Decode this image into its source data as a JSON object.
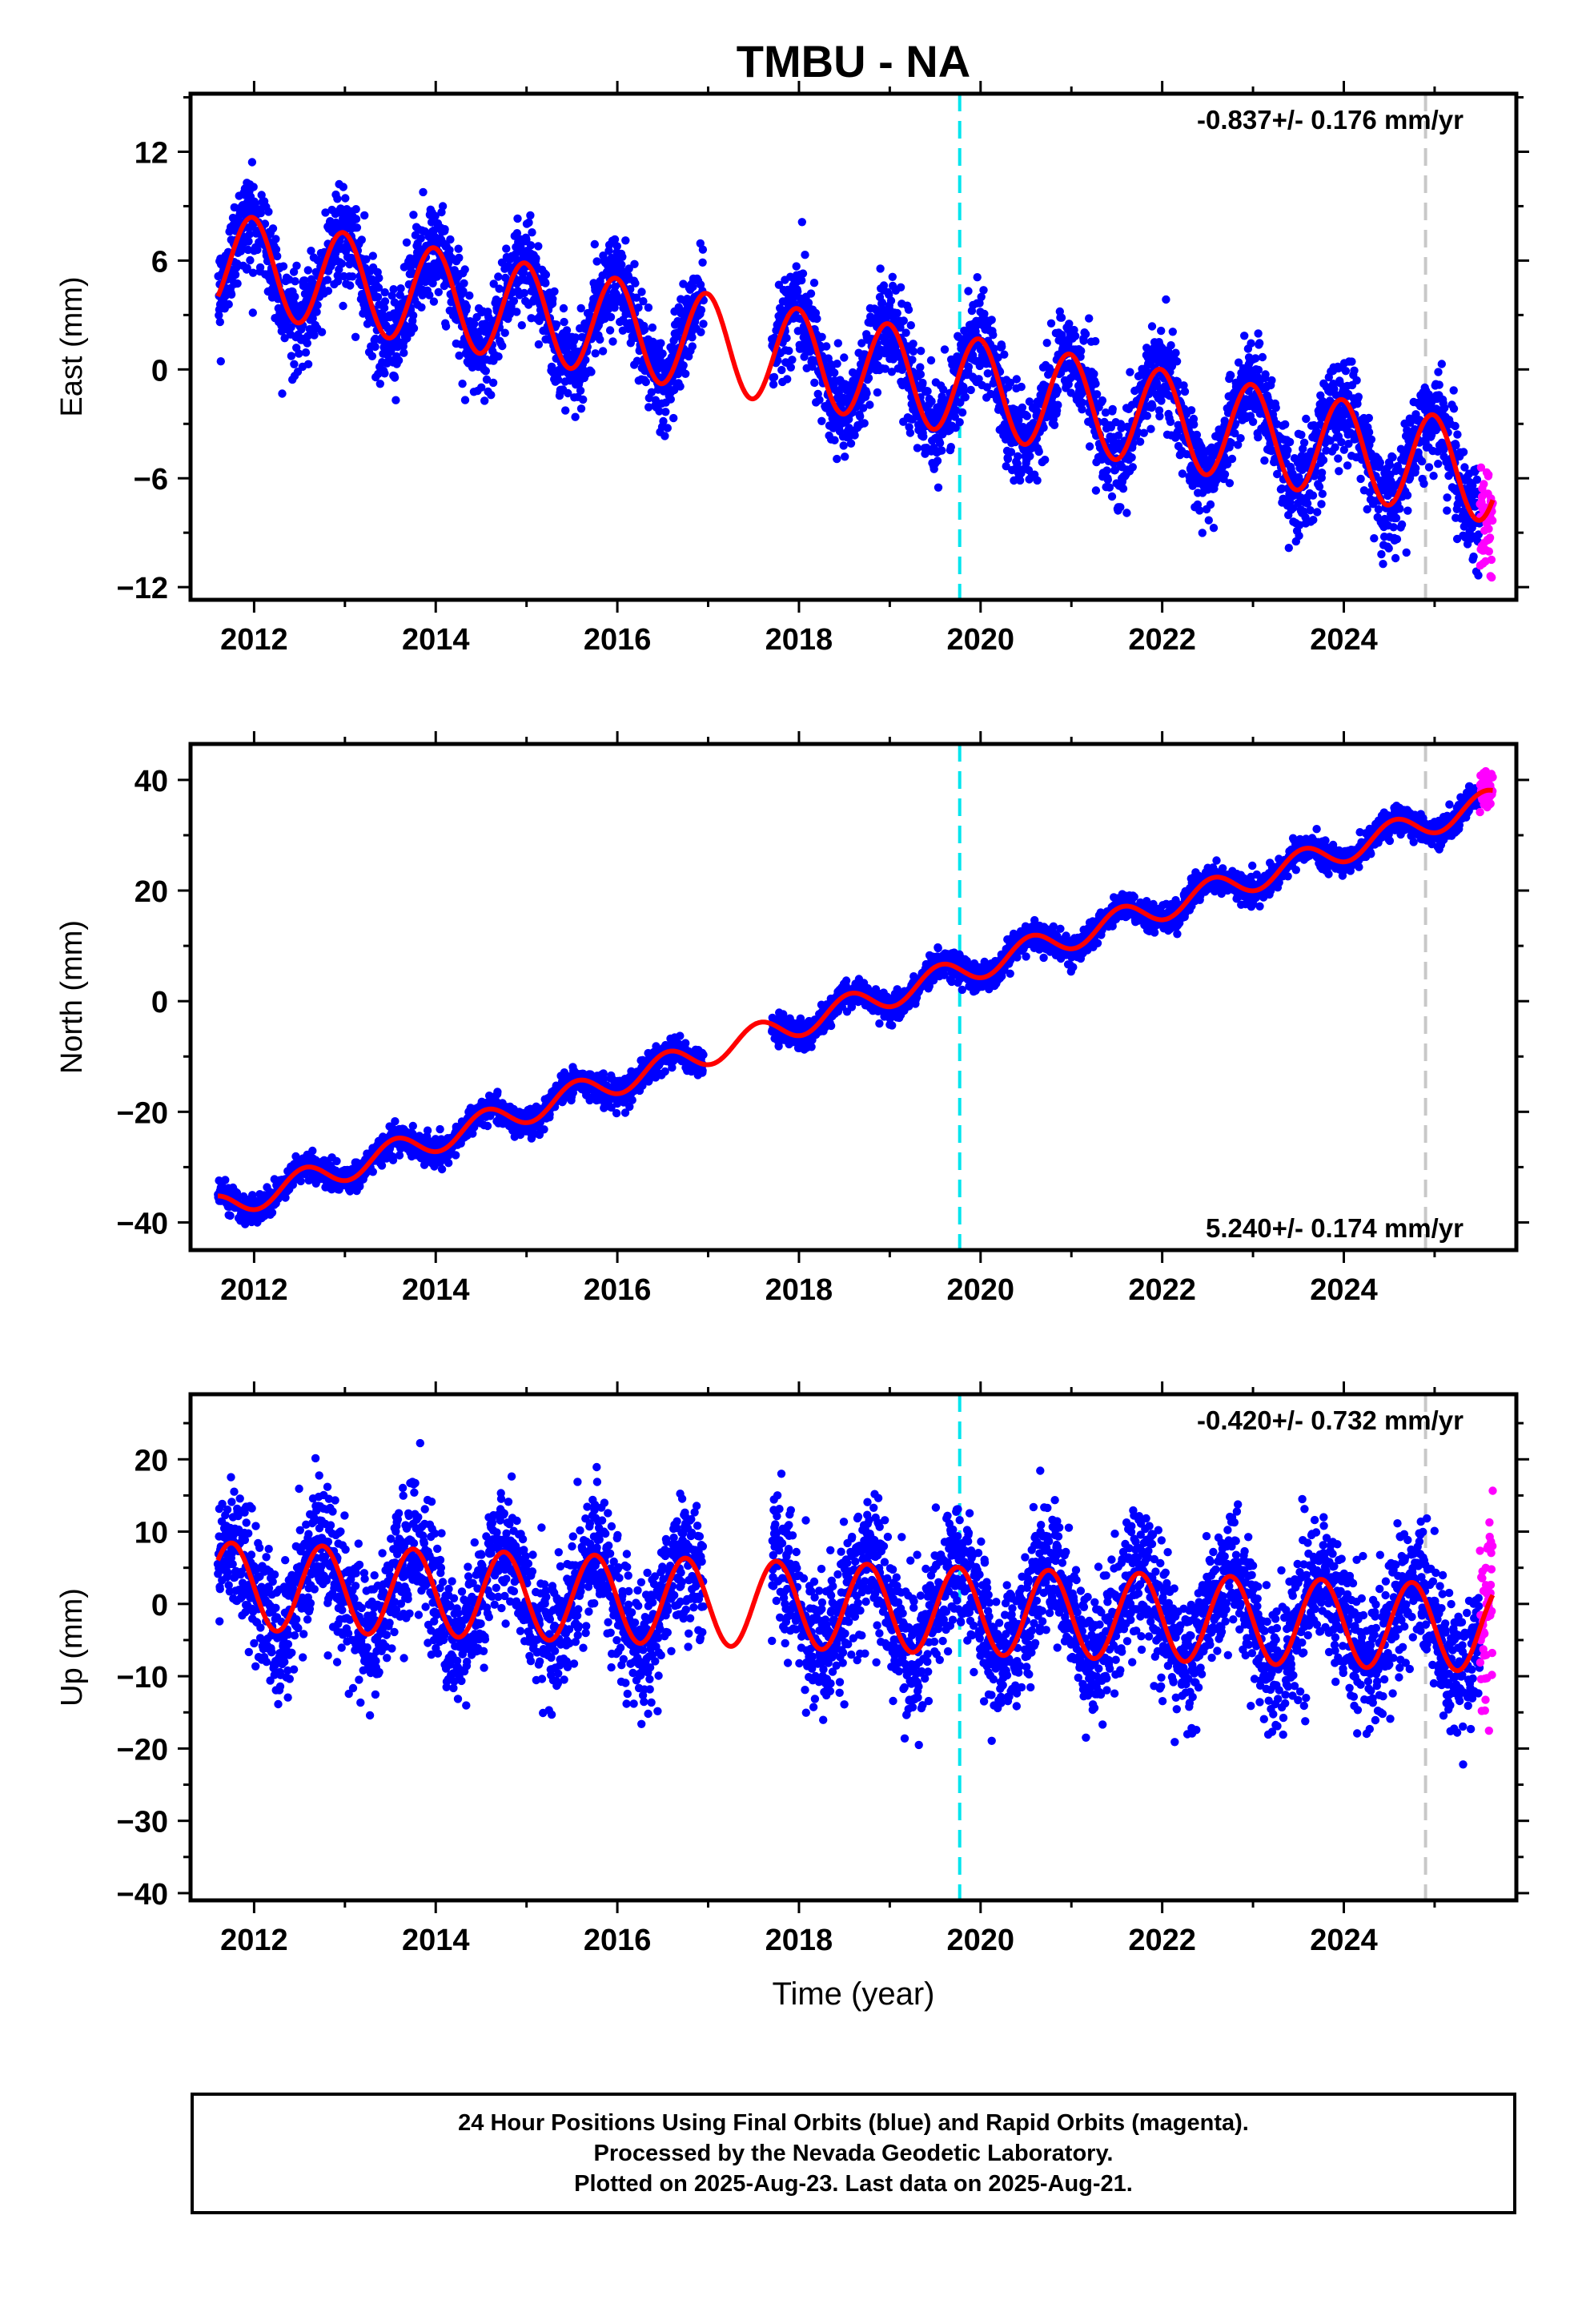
{
  "title": "TMBU - NA",
  "footer": {
    "line1": "24 Hour Positions Using Final Orbits (blue) and Rapid Orbits (magenta).",
    "line2": "Processed by the Nevada Geodetic Laboratory.",
    "line3": "Plotted on 2025-Aug-23. Last data on 2025-Aug-21."
  },
  "colors": {
    "final_orbits": "#0000ff",
    "rapid_orbits": "#ff00ff",
    "model_fit": "#ff0000",
    "cyan_marker": "#00e5ee",
    "gray_marker": "#c8c8c8"
  },
  "chart_data": [
    {
      "type": "scatter",
      "component": "east",
      "ylabel": "East (mm)",
      "xlabel": "",
      "xlim": [
        2011.3,
        2025.9
      ],
      "ylim": [
        -12.7,
        15.2
      ],
      "xticks": [
        2012,
        2014,
        2016,
        2018,
        2020,
        2022,
        2024
      ],
      "yticks": [
        -12,
        -6,
        0,
        6,
        12
      ],
      "annotation": "-0.837+/- 0.176 mm/yr",
      "annotation_position": "top-right",
      "vertical_lines": [
        {
          "x": 2019.77,
          "style": "dashed",
          "color": "cyan"
        },
        {
          "x": 2024.9,
          "style": "dashed",
          "color": "gray"
        }
      ],
      "model": {
        "intercept": 6.0,
        "rate": -0.837,
        "annual_amplitude": 2.7,
        "annual_phase_year": 2011.98
      },
      "final_orbits_range": [
        2011.6,
        2025.5
      ],
      "rapid_orbits_range": [
        2025.5,
        2025.64
      ],
      "grid": false
    },
    {
      "type": "scatter",
      "component": "north",
      "ylabel": "North (mm)",
      "xlabel": "",
      "xlim": [
        2011.3,
        2025.9
      ],
      "ylim": [
        -45,
        46.5
      ],
      "xticks": [
        2012,
        2014,
        2016,
        2018,
        2020,
        2022,
        2024
      ],
      "yticks": [
        -40,
        -20,
        0,
        20,
        40
      ],
      "annotation": "5.240+/- 0.174 mm/yr",
      "annotation_position": "bottom-right",
      "vertical_lines": [
        {
          "x": 2019.77,
          "style": "dashed",
          "color": "cyan"
        },
        {
          "x": 2024.9,
          "style": "dashed",
          "color": "gray"
        }
      ],
      "model": {
        "intercept": -37.5,
        "rate": 5.24,
        "annual_amplitude": 2.4,
        "annual_phase_year": 2012.55
      },
      "final_orbits_range": [
        2011.6,
        2025.5
      ],
      "rapid_orbits_range": [
        2025.5,
        2025.64
      ],
      "grid": false
    },
    {
      "type": "scatter",
      "component": "up",
      "ylabel": "Up (mm)",
      "xlabel": "Time (year)",
      "xlim": [
        2011.3,
        2025.9
      ],
      "ylim": [
        -41,
        29
      ],
      "xticks": [
        2012,
        2014,
        2016,
        2018,
        2020,
        2022,
        2024
      ],
      "yticks": [
        -40,
        -30,
        -20,
        -10,
        0,
        10,
        20
      ],
      "annotation": "-0.420+/- 0.732 mm/yr",
      "annotation_position": "top-right",
      "vertical_lines": [
        {
          "x": 2019.77,
          "style": "dashed",
          "color": "cyan"
        },
        {
          "x": 2024.9,
          "style": "dashed",
          "color": "gray"
        }
      ],
      "model": {
        "intercept": 2.5,
        "rate": -0.42,
        "annual_amplitude": 6.0,
        "annual_phase_year": 2011.75
      },
      "final_orbits_range": [
        2011.6,
        2025.5
      ],
      "rapid_orbits_range": [
        2025.5,
        2025.64
      ],
      "grid": false
    }
  ]
}
